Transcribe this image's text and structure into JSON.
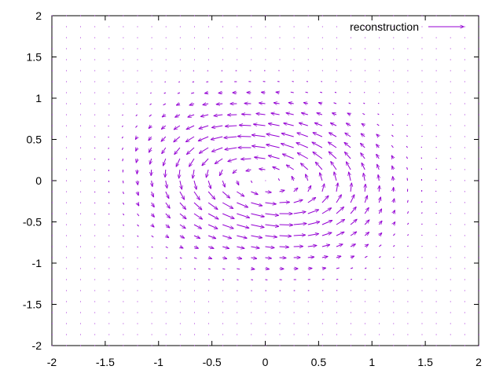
{
  "chart_data": {
    "type": "vector_field",
    "title": "",
    "xlabel": "",
    "ylabel": "",
    "xlim": [
      -2,
      2
    ],
    "ylim": [
      -2,
      2
    ],
    "x_ticks": [
      "-2",
      "-1.5",
      "-1",
      "-0.5",
      "0",
      "0.5",
      "1",
      "1.5",
      "2"
    ],
    "y_ticks": [
      "2",
      "1.5",
      "1",
      "0.5",
      "0",
      "-0.5",
      "-1",
      "-1.5",
      "-2"
    ],
    "legend": {
      "position": "top-right",
      "label": "reconstruction"
    },
    "grid": false,
    "color": "#9400d3",
    "field": {
      "description_type": "two-vortex swirl",
      "x_start": -2,
      "x_end": 2,
      "y_start": -2,
      "y_end": 2,
      "nx": 31,
      "ny": 31,
      "centers": [
        [
          -0.35,
          0.1,
          1
        ],
        [
          0.35,
          -0.1,
          1
        ]
      ],
      "sigma": 0.65,
      "max_arrow_data_length": 0.13
    }
  }
}
